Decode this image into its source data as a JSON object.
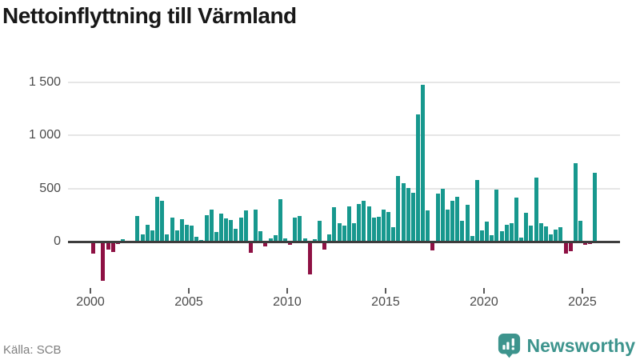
{
  "title": "Nettoinflyttning till Värmland",
  "source": "Källa: SCB",
  "brand": {
    "name": "Newsworthy",
    "icon": "newsworthy-speech-bubble-bar-chart-icon"
  },
  "colors": {
    "positive_bar": "#17988e",
    "negative_bar": "#8e1144",
    "axis_line": "#3d3d3d",
    "gridline": "#e6e6e6",
    "tick_label": "#4b4b4b",
    "source_text": "#7f7f7f",
    "brand_teal": "#3d948d",
    "title_text": "#181818"
  },
  "chart_data": {
    "type": "bar",
    "title": "Nettoinflyttning till Värmland",
    "xlabel": "",
    "ylabel": "",
    "grid": true,
    "legend": "none",
    "frequency": "quarterly",
    "start": "2000-Q1",
    "end": "2025-Q4",
    "x_axis": {
      "tick_labels": [
        "2000",
        "2005",
        "2010",
        "2015",
        "2020",
        "2025"
      ],
      "tick_years": [
        2000,
        2005,
        2010,
        2015,
        2020,
        2025
      ]
    },
    "y_axis": {
      "tick_labels": [
        "0",
        "500",
        "1 000",
        "1 500"
      ],
      "tick_values": [
        0,
        500,
        1000,
        1500
      ],
      "range": [
        -455,
        1610
      ]
    },
    "values_by_year": {
      "2000": [
        0,
        -113,
        0,
        -366
      ],
      "2001": [
        -70,
        -95,
        -20,
        23
      ],
      "2002": [
        0,
        5,
        243,
        68
      ],
      "2003": [
        160,
        105,
        426,
        386
      ],
      "2004": [
        68,
        230,
        110,
        211
      ],
      "2005": [
        160,
        150,
        50,
        17
      ],
      "2006": [
        250,
        303,
        92,
        268
      ],
      "2007": [
        220,
        205,
        123,
        225
      ],
      "2008": [
        293,
        -103,
        305,
        98
      ],
      "2009": [
        -45,
        30,
        60,
        400
      ],
      "2010": [
        35,
        -25,
        230,
        243
      ],
      "2011": [
        35,
        -308,
        25,
        200
      ],
      "2012": [
        -70,
        73,
        328,
        177
      ],
      "2013": [
        155,
        331,
        177,
        358
      ],
      "2014": [
        383,
        331,
        228,
        233
      ],
      "2015": [
        301,
        278,
        135,
        620
      ],
      "2016": [
        549,
        506,
        463,
        1200
      ],
      "2017": [
        1475,
        293,
        -83,
        456
      ],
      "2018": [
        501,
        305,
        388,
        423
      ],
      "2019": [
        198,
        350,
        55,
        581
      ],
      "2020": [
        110,
        188,
        60,
        493
      ],
      "2021": [
        100,
        162,
        173,
        413
      ],
      "2022": [
        42,
        270,
        150,
        600
      ],
      "2023": [
        173,
        143,
        68,
        117
      ],
      "2024": [
        138,
        -113,
        -90,
        740
      ],
      "2025": [
        200,
        -25,
        -20,
        650
      ]
    }
  }
}
